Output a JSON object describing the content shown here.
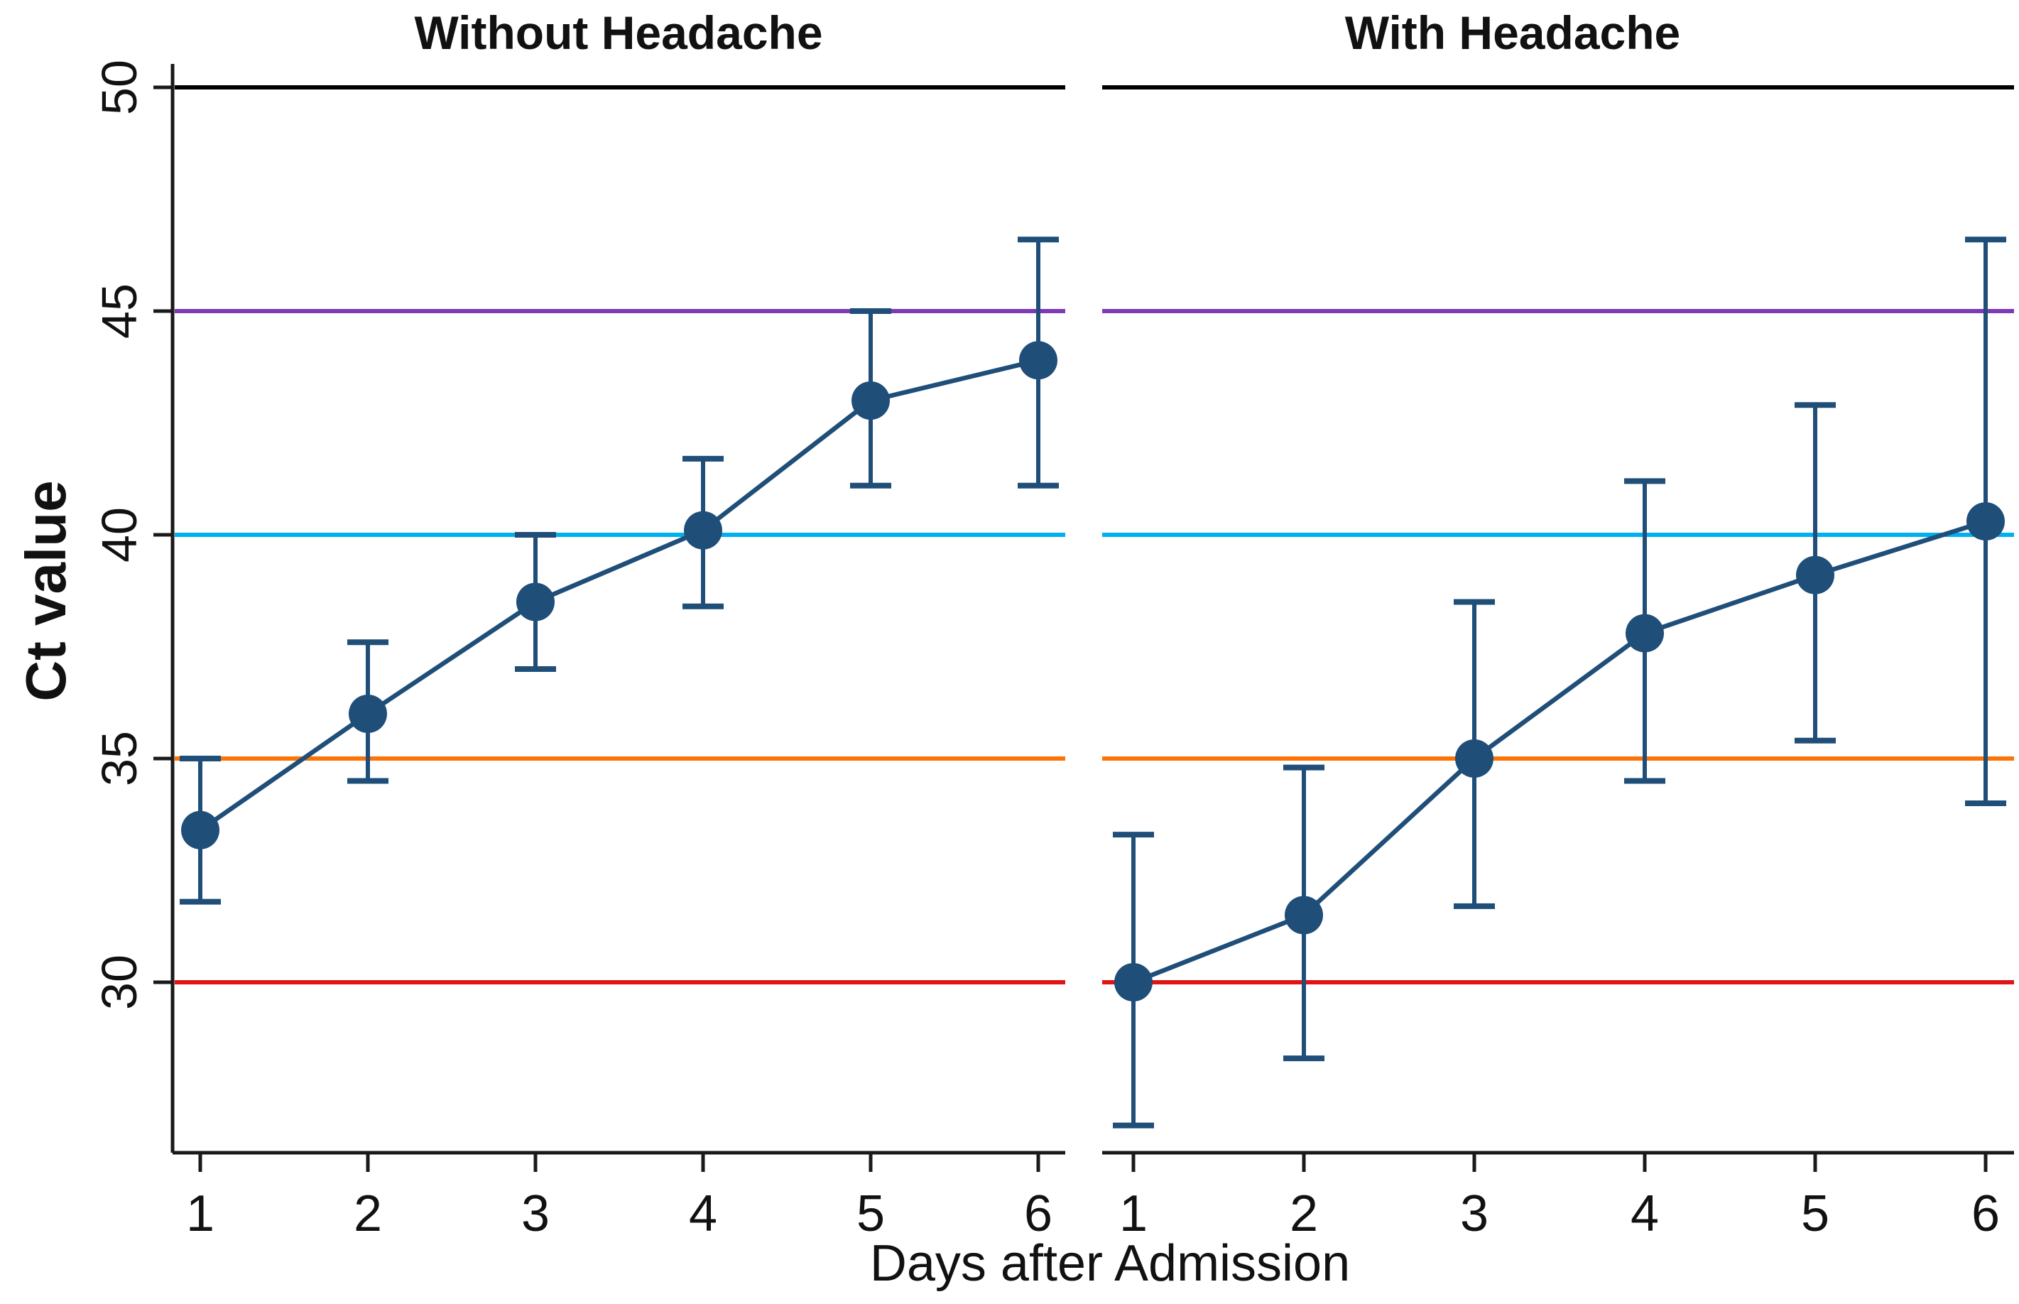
{
  "chart_data": {
    "type": "line",
    "ylabel": "Ct value",
    "xlabel": "Days after Admission",
    "ylim": [
      26,
      50.5
    ],
    "yticks": [
      30,
      35,
      40,
      45,
      50
    ],
    "xticks": [
      1,
      2,
      3,
      4,
      5,
      6
    ],
    "grid": false,
    "legend": "none",
    "series_color": "#1F4E79",
    "axis_color": "#1a1a1a",
    "reference_lines": [
      {
        "value": 30,
        "color": "#E01414",
        "name": "ref-30"
      },
      {
        "value": 35,
        "color": "#FC7307",
        "name": "ref-35"
      },
      {
        "value": 40,
        "color": "#00B0F0",
        "name": "ref-40"
      },
      {
        "value": 45,
        "color": "#7D3AB5",
        "name": "ref-45"
      },
      {
        "value": 50,
        "color": "#000000",
        "name": "ref-50"
      }
    ],
    "panels": [
      {
        "title": "Without Headache",
        "x": [
          1,
          2,
          3,
          4,
          5,
          6
        ],
        "mean": [
          33.4,
          36.0,
          38.5,
          40.1,
          43.0,
          43.9
        ],
        "ci_low": [
          31.8,
          34.5,
          37.0,
          38.4,
          41.1,
          41.1
        ],
        "ci_high": [
          35.0,
          37.6,
          40.0,
          41.7,
          45.0,
          46.6
        ]
      },
      {
        "title": "With Headache",
        "x": [
          1,
          2,
          3,
          4,
          5,
          6
        ],
        "mean": [
          30.0,
          31.5,
          35.0,
          37.8,
          39.1,
          40.3
        ],
        "ci_low": [
          26.8,
          28.3,
          31.7,
          34.5,
          35.4,
          34.0
        ],
        "ci_high": [
          33.3,
          34.8,
          38.5,
          41.2,
          42.9,
          46.6
        ]
      }
    ]
  }
}
